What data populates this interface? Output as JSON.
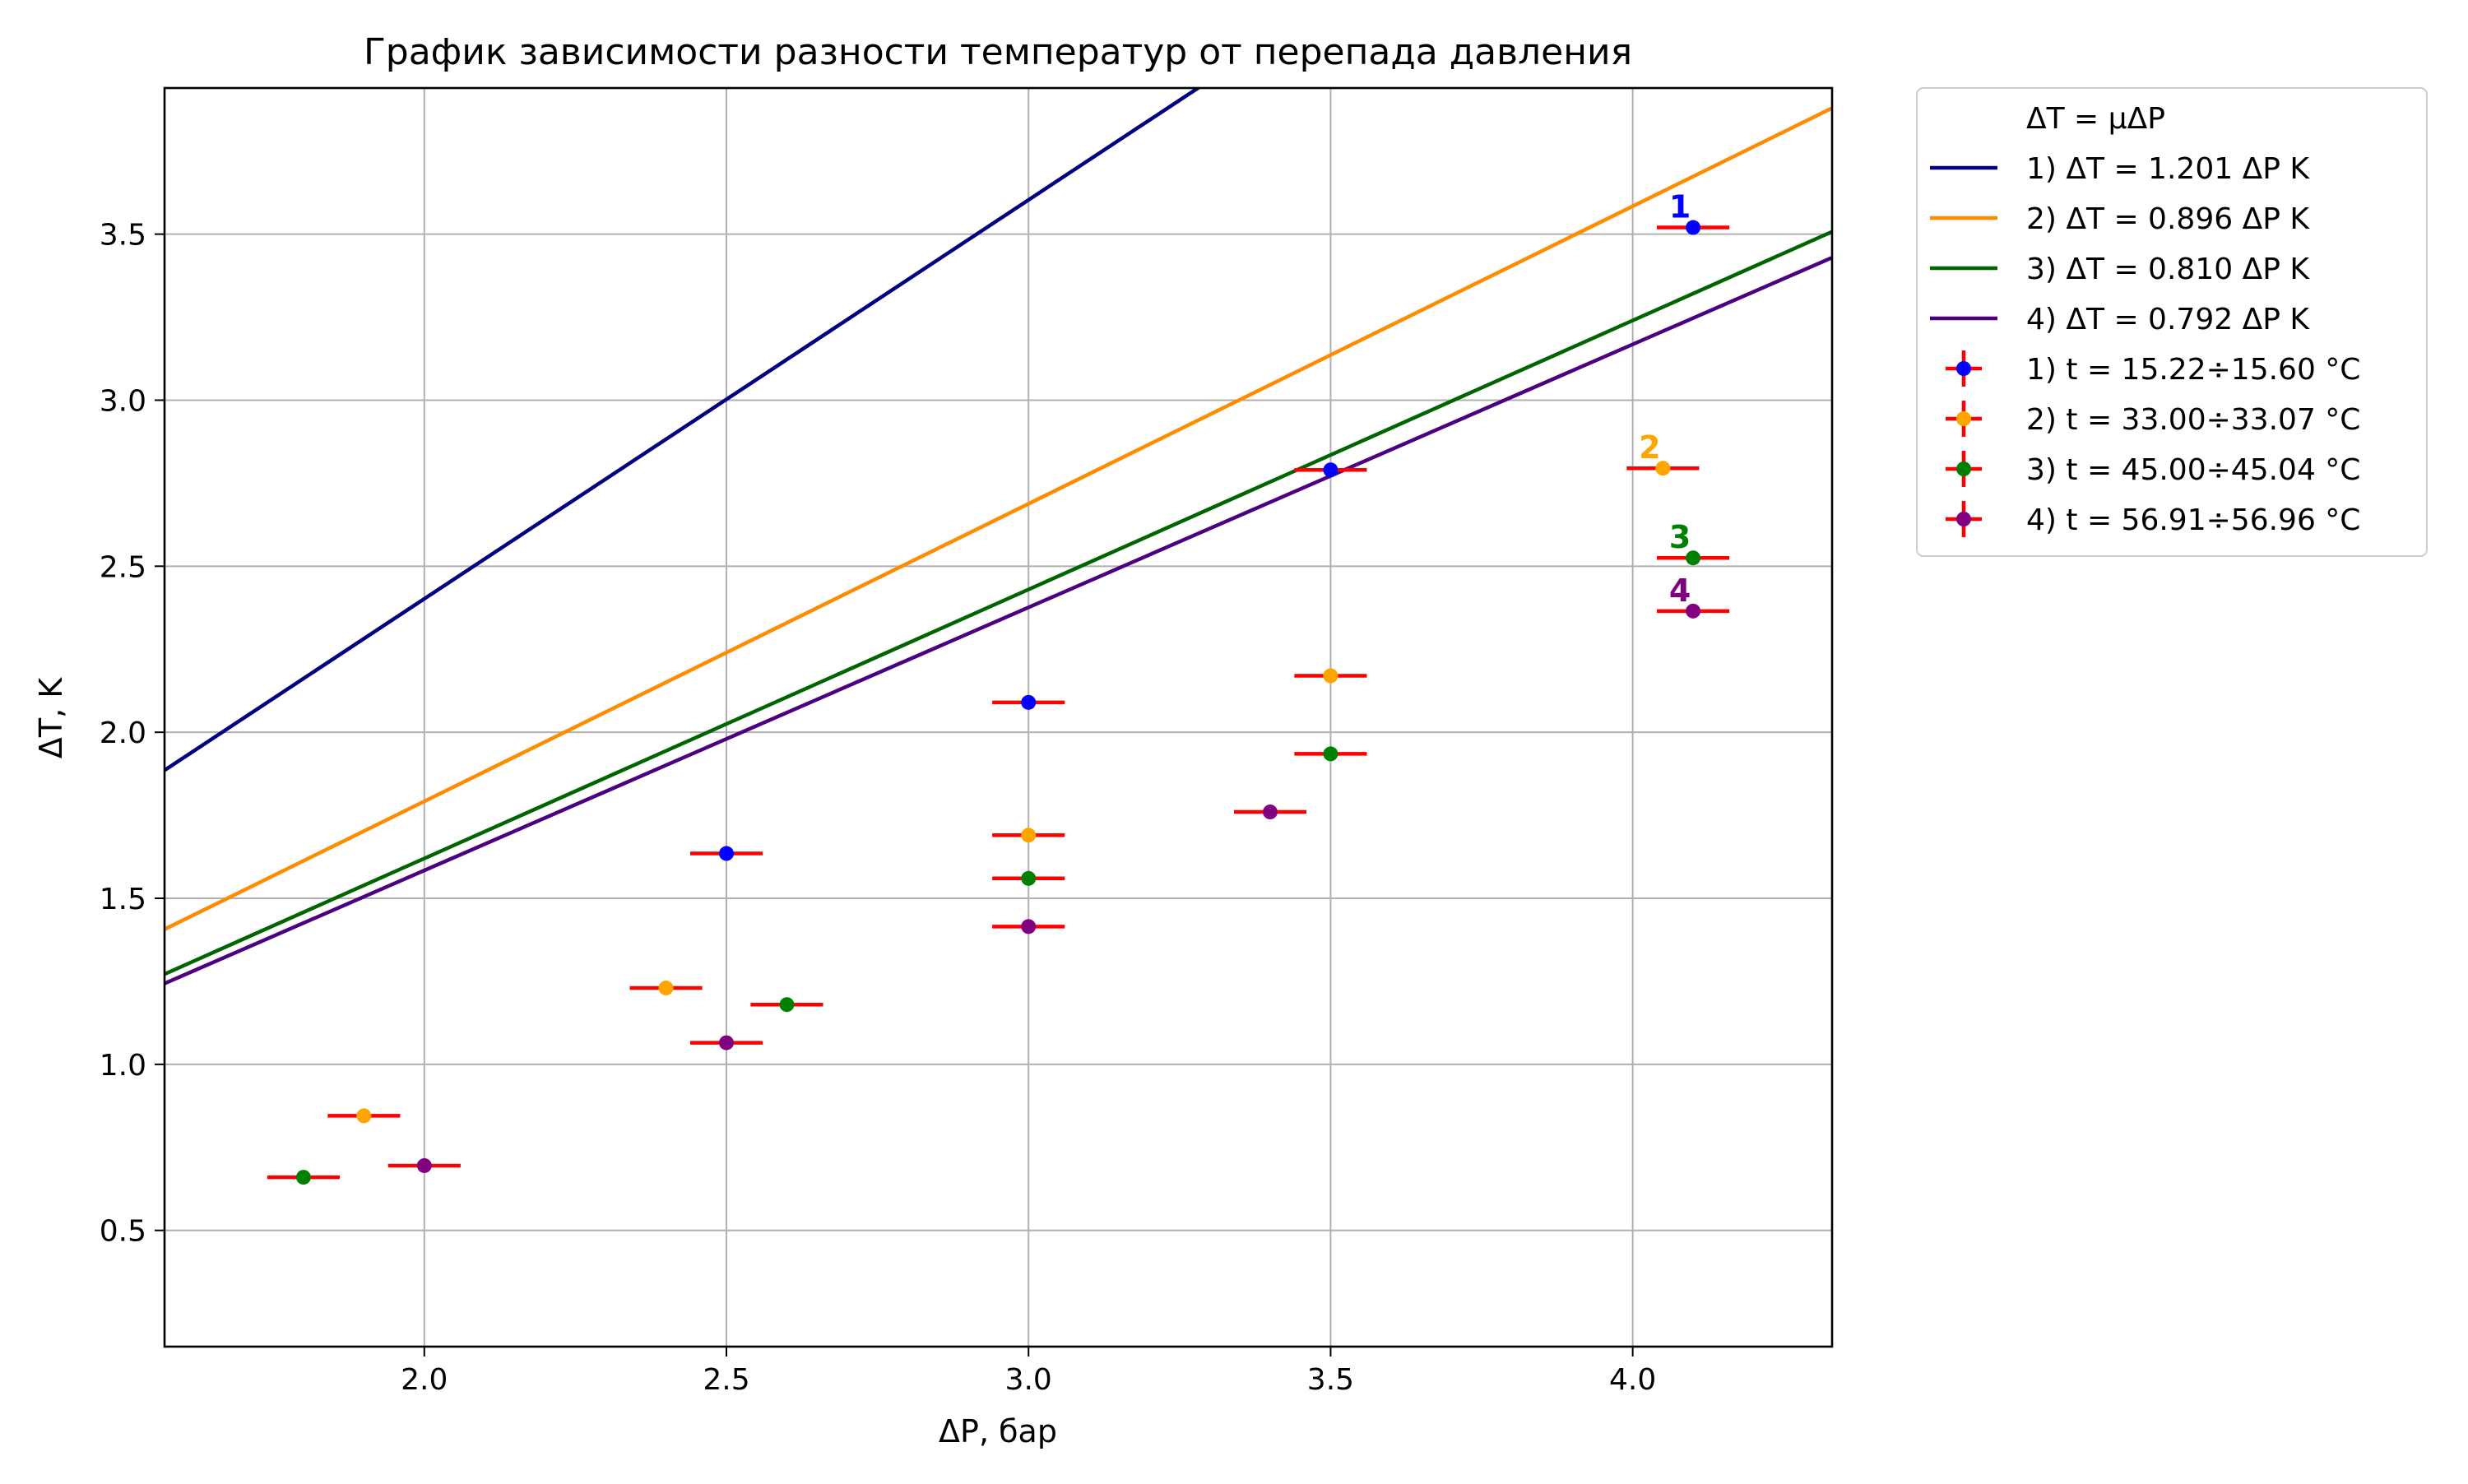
{
  "chart_data": {
    "type": "scatter",
    "title": "График зависимости разности температур от перепада давления",
    "xlabel": "ΔP, бар",
    "ylabel": "ΔT, K",
    "xlim": [
      1.57,
      4.33
    ],
    "ylim": [
      0.15,
      3.94
    ],
    "xticks": [
      {
        "value": 2.0,
        "label": "2.0"
      },
      {
        "value": 2.5,
        "label": "2.5"
      },
      {
        "value": 3.0,
        "label": "3.0"
      },
      {
        "value": 3.5,
        "label": "3.5"
      },
      {
        "value": 4.0,
        "label": "4.0"
      }
    ],
    "yticks": [
      {
        "value": 0.5,
        "label": "0.5"
      },
      {
        "value": 1.0,
        "label": "1.0"
      },
      {
        "value": 1.5,
        "label": "1.5"
      },
      {
        "value": 2.0,
        "label": "2.0"
      },
      {
        "value": 2.5,
        "label": "2.5"
      },
      {
        "value": 3.0,
        "label": "3.0"
      },
      {
        "value": 3.5,
        "label": "3.5"
      }
    ],
    "grid": true,
    "legend_position": "outside-right",
    "legend_header": "ΔT = μΔP",
    "error_bar_color": "#ff0000",
    "x_error": 0.06,
    "fits": [
      {
        "name": "1) ΔT = 1.201 ΔP K",
        "slope": 1.201,
        "color": "#000080"
      },
      {
        "name": "2) ΔT = 0.896 ΔP K",
        "slope": 0.896,
        "color": "#ff8c00"
      },
      {
        "name": "3) ΔT = 0.810 ΔP K",
        "slope": 0.81,
        "color": "#006400"
      },
      {
        "name": "4) ΔT = 0.792 ΔP K",
        "slope": 0.792,
        "color": "#4b0082"
      }
    ],
    "series": [
      {
        "name": "1) t = 15.22÷15.60 °C",
        "color": "#0000ff",
        "label": "1",
        "label_color": "#0000ff",
        "x": [
          2.5,
          3.0,
          3.5,
          4.1
        ],
        "y": [
          1.635,
          2.09,
          2.79,
          3.52
        ]
      },
      {
        "name": "2) t = 33.00÷33.07 °C",
        "color": "#ffa500",
        "label": "2",
        "label_color": "#ffa500",
        "x": [
          1.9,
          2.4,
          3.0,
          3.5,
          4.05
        ],
        "y": [
          0.845,
          1.23,
          1.69,
          2.17,
          2.795
        ]
      },
      {
        "name": "3) t = 45.00÷45.04 °C",
        "color": "#008000",
        "label": "3",
        "label_color": "#008000",
        "x": [
          1.8,
          2.6,
          3.0,
          3.5,
          4.1
        ],
        "y": [
          0.66,
          1.18,
          1.56,
          1.935,
          2.525
        ]
      },
      {
        "name": "4) t = 56.91÷56.96 °C",
        "color": "#800080",
        "label": "4",
        "label_color": "#800080",
        "x": [
          2.0,
          2.5,
          3.0,
          3.4,
          4.1
        ],
        "y": [
          0.695,
          1.065,
          1.415,
          1.76,
          2.365
        ]
      }
    ]
  }
}
